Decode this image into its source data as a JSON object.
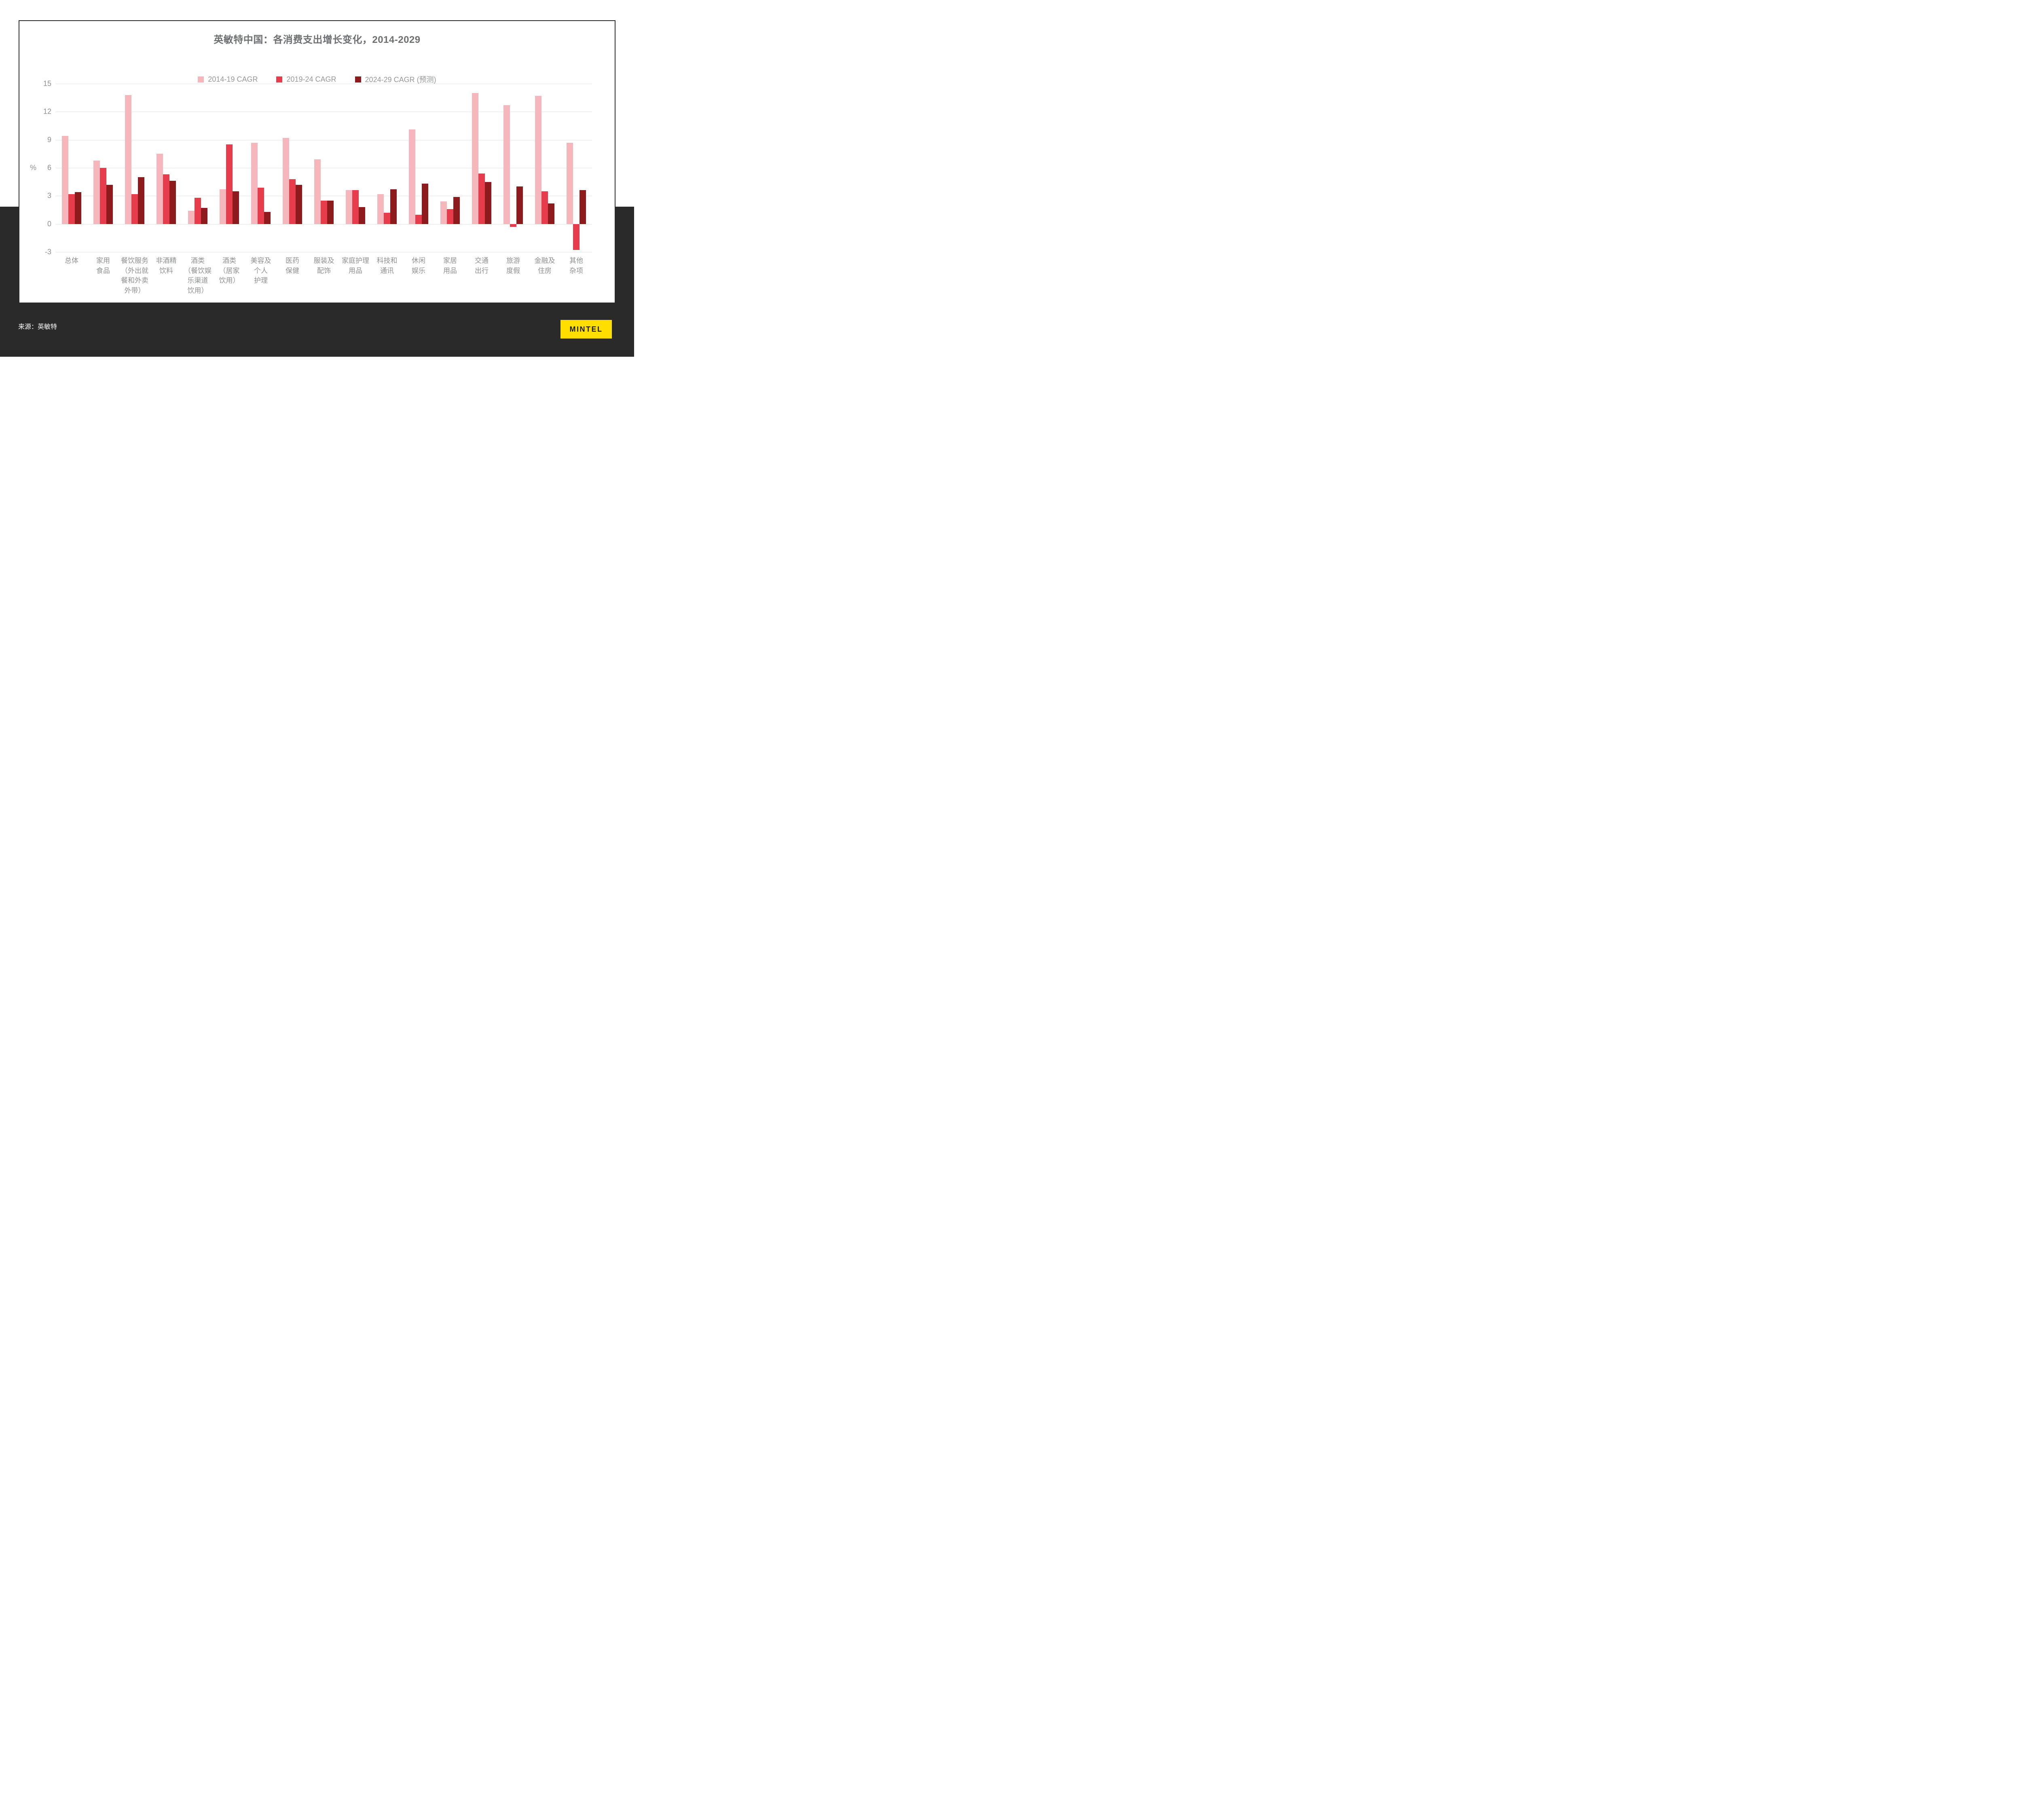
{
  "chart_data": {
    "type": "bar",
    "title": "英敏特中国：各消费支出增长变化，2014-2029",
    "ylabel": "%",
    "ylim": [
      -3,
      15
    ],
    "yticks": [
      15,
      12,
      9,
      6,
      3,
      0,
      -3
    ],
    "grid": true,
    "legend_position": "top",
    "categories": [
      "总体",
      "家用\n食品",
      "餐饮服务\n（外出就\n餐和外卖\n外带）",
      "非酒精\n饮料",
      "酒类\n（餐饮娱\n乐渠道\n饮用）",
      "酒类\n（居家\n饮用）",
      "美容及\n个人\n护理",
      "医药\n保健",
      "服装及\n配饰",
      "家庭护理\n用品",
      "科技和\n通讯",
      "休闲\n娱乐",
      "家居\n用品",
      "交通\n出行",
      "旅游\n度假",
      "金融及\n住房",
      "其他\n杂项"
    ],
    "series": [
      {
        "name": "2014-19 CAGR",
        "color": "#f5b6bc",
        "values": [
          9.4,
          6.8,
          13.8,
          7.5,
          1.4,
          3.7,
          8.7,
          9.2,
          6.9,
          3.6,
          3.2,
          10.1,
          2.4,
          14.0,
          12.7,
          13.7,
          8.7
        ]
      },
      {
        "name": "2019-24 CAGR",
        "color": "#e73c4b",
        "values": [
          3.2,
          6.0,
          3.2,
          5.3,
          2.8,
          8.5,
          3.9,
          4.8,
          2.5,
          3.6,
          1.2,
          1.0,
          1.6,
          5.4,
          -0.3,
          3.5,
          -2.8
        ]
      },
      {
        "name": "2024-29 CAGR (预测)",
        "color": "#8d1b1d",
        "values": [
          3.4,
          4.2,
          5.0,
          4.6,
          1.7,
          3.5,
          1.3,
          4.2,
          2.5,
          1.8,
          3.7,
          4.3,
          2.9,
          4.5,
          4.0,
          2.2,
          3.6
        ]
      }
    ]
  },
  "footer": {
    "source": "来源：英敏特",
    "logo": "MINTEL"
  },
  "colors": {
    "band_background": "#2a2a2b",
    "card_border": "#2b2b2b",
    "logo_background": "#ffde00",
    "gridline": "#e3e3e3",
    "title_text": "#6e6f73",
    "axis_text": "#8f9094"
  }
}
